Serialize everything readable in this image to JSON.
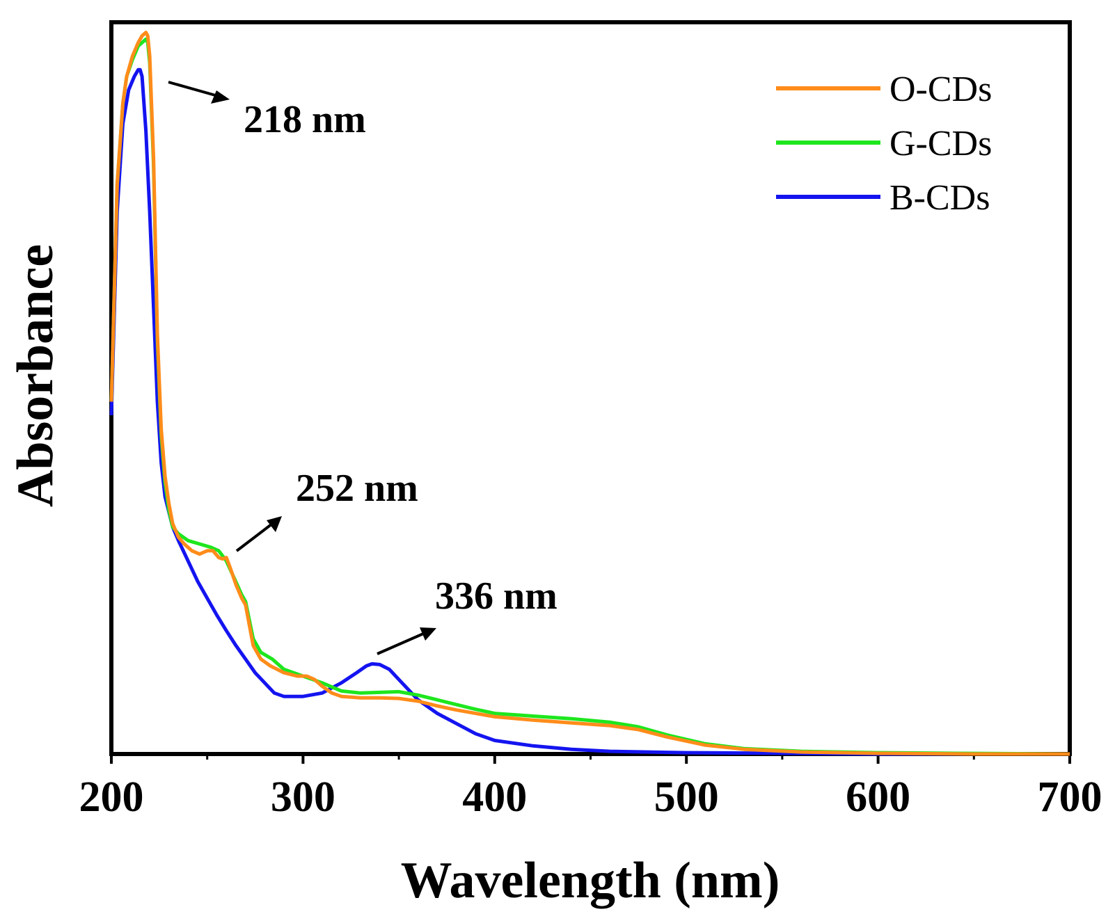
{
  "chart_data": {
    "type": "line",
    "xlabel": "Wavelength (nm)",
    "ylabel": "Absorbance",
    "xlim": [
      200,
      700
    ],
    "ylim": [
      0,
      1.08
    ],
    "x_ticks": [
      "200",
      "300",
      "400",
      "500",
      "600",
      "700"
    ],
    "y_ticks_labeled": false,
    "grid": false,
    "legend_position": "top-right",
    "series": [
      {
        "name": "O-CDs",
        "color": "#FF8C1A",
        "points": [
          [
            200,
            0.52
          ],
          [
            203,
            0.84
          ],
          [
            206,
            0.96
          ],
          [
            208,
            1.0
          ],
          [
            211,
            1.03
          ],
          [
            214,
            1.05
          ],
          [
            216,
            1.06
          ],
          [
            218,
            1.065
          ],
          [
            219,
            1.06
          ],
          [
            220,
            1.03
          ],
          [
            222,
            0.88
          ],
          [
            224,
            0.62
          ],
          [
            226,
            0.48
          ],
          [
            228,
            0.41
          ],
          [
            230,
            0.37
          ],
          [
            232,
            0.34
          ],
          [
            235,
            0.32
          ],
          [
            238,
            0.31
          ],
          [
            242,
            0.3
          ],
          [
            246,
            0.295
          ],
          [
            250,
            0.3
          ],
          [
            253,
            0.3
          ],
          [
            256,
            0.29
          ],
          [
            258,
            0.288
          ],
          [
            260,
            0.29
          ],
          [
            262,
            0.275
          ],
          [
            265,
            0.25
          ],
          [
            268,
            0.23
          ],
          [
            270,
            0.22
          ],
          [
            274,
            0.16
          ],
          [
            278,
            0.14
          ],
          [
            283,
            0.13
          ],
          [
            290,
            0.12
          ],
          [
            297,
            0.115
          ],
          [
            302,
            0.115
          ],
          [
            306,
            0.11
          ],
          [
            310,
            0.1
          ],
          [
            315,
            0.09
          ],
          [
            320,
            0.085
          ],
          [
            330,
            0.083
          ],
          [
            340,
            0.083
          ],
          [
            350,
            0.082
          ],
          [
            360,
            0.078
          ],
          [
            370,
            0.071
          ],
          [
            380,
            0.065
          ],
          [
            390,
            0.06
          ],
          [
            400,
            0.055
          ],
          [
            420,
            0.05
          ],
          [
            440,
            0.046
          ],
          [
            460,
            0.042
          ],
          [
            475,
            0.036
          ],
          [
            490,
            0.025
          ],
          [
            510,
            0.013
          ],
          [
            530,
            0.007
          ],
          [
            560,
            0.003
          ],
          [
            600,
            0.001
          ],
          [
            650,
            0.0
          ],
          [
            700,
            0.0
          ]
        ]
      },
      {
        "name": "G-CDs",
        "color": "#1EE61E",
        "points": [
          [
            200,
            0.52
          ],
          [
            203,
            0.84
          ],
          [
            206,
            0.96
          ],
          [
            208,
            1.0
          ],
          [
            211,
            1.025
          ],
          [
            214,
            1.045
          ],
          [
            216,
            1.05
          ],
          [
            218,
            1.055
          ],
          [
            219,
            1.05
          ],
          [
            220,
            1.02
          ],
          [
            222,
            0.87
          ],
          [
            224,
            0.61
          ],
          [
            226,
            0.47
          ],
          [
            228,
            0.4
          ],
          [
            230,
            0.36
          ],
          [
            232,
            0.335
          ],
          [
            235,
            0.325
          ],
          [
            240,
            0.315
          ],
          [
            246,
            0.31
          ],
          [
            252,
            0.305
          ],
          [
            256,
            0.3
          ],
          [
            260,
            0.285
          ],
          [
            264,
            0.26
          ],
          [
            268,
            0.235
          ],
          [
            270,
            0.225
          ],
          [
            274,
            0.17
          ],
          [
            278,
            0.15
          ],
          [
            284,
            0.14
          ],
          [
            290,
            0.125
          ],
          [
            300,
            0.115
          ],
          [
            310,
            0.105
          ],
          [
            320,
            0.093
          ],
          [
            330,
            0.09
          ],
          [
            340,
            0.091
          ],
          [
            350,
            0.092
          ],
          [
            360,
            0.087
          ],
          [
            370,
            0.08
          ],
          [
            380,
            0.073
          ],
          [
            390,
            0.066
          ],
          [
            400,
            0.06
          ],
          [
            420,
            0.056
          ],
          [
            440,
            0.052
          ],
          [
            460,
            0.047
          ],
          [
            475,
            0.04
          ],
          [
            490,
            0.028
          ],
          [
            510,
            0.015
          ],
          [
            530,
            0.008
          ],
          [
            560,
            0.004
          ],
          [
            600,
            0.002
          ],
          [
            640,
            0.001
          ],
          [
            700,
            0.0
          ]
        ]
      },
      {
        "name": "B-CDs",
        "color": "#1414F0",
        "points": [
          [
            200,
            0.5
          ],
          [
            203,
            0.8
          ],
          [
            206,
            0.93
          ],
          [
            209,
            0.98
          ],
          [
            212,
            1.0
          ],
          [
            214,
            1.01
          ],
          [
            215,
            1.01
          ],
          [
            216,
            1.0
          ],
          [
            218,
            0.92
          ],
          [
            220,
            0.8
          ],
          [
            222,
            0.66
          ],
          [
            224,
            0.52
          ],
          [
            226,
            0.43
          ],
          [
            228,
            0.38
          ],
          [
            232,
            0.335
          ],
          [
            235,
            0.315
          ],
          [
            240,
            0.285
          ],
          [
            245,
            0.255
          ],
          [
            250,
            0.23
          ],
          [
            255,
            0.205
          ],
          [
            260,
            0.182
          ],
          [
            265,
            0.16
          ],
          [
            270,
            0.14
          ],
          [
            275,
            0.12
          ],
          [
            280,
            0.105
          ],
          [
            285,
            0.09
          ],
          [
            290,
            0.085
          ],
          [
            300,
            0.085
          ],
          [
            310,
            0.09
          ],
          [
            320,
            0.105
          ],
          [
            328,
            0.12
          ],
          [
            333,
            0.13
          ],
          [
            336,
            0.133
          ],
          [
            340,
            0.132
          ],
          [
            345,
            0.125
          ],
          [
            350,
            0.11
          ],
          [
            360,
            0.08
          ],
          [
            370,
            0.06
          ],
          [
            380,
            0.045
          ],
          [
            390,
            0.03
          ],
          [
            400,
            0.02
          ],
          [
            420,
            0.012
          ],
          [
            440,
            0.007
          ],
          [
            460,
            0.004
          ],
          [
            500,
            0.002
          ],
          [
            550,
            0.001
          ],
          [
            600,
            0.0
          ],
          [
            700,
            0.0
          ]
        ]
      }
    ],
    "annotations": [
      {
        "text": "218 nm",
        "x": 218
      },
      {
        "text": "252 nm",
        "x": 252
      },
      {
        "text": "336 nm",
        "x": 336
      }
    ]
  }
}
